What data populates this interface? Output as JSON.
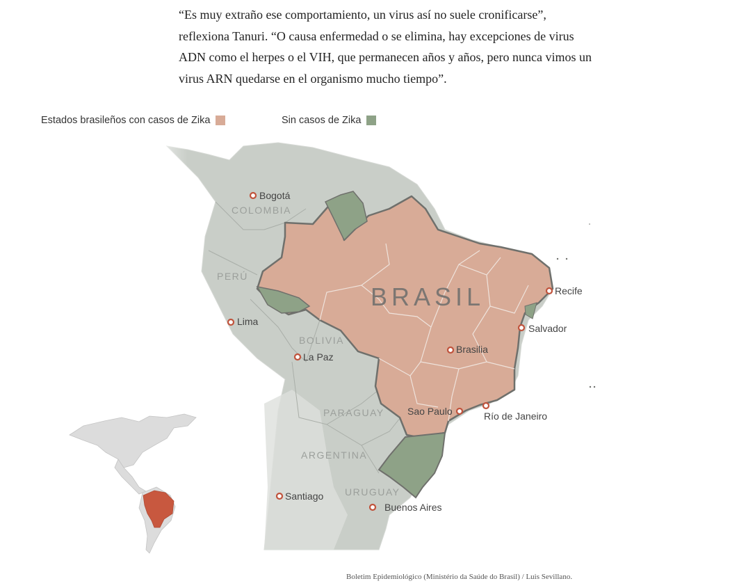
{
  "article": {
    "paragraph": "“Es muy extraño ese comportamiento, un virus así no suele cronificarse”, reflexiona Tanuri. “O causa enfermedad o se elimina, hay excepciones de virus ADN como el herpes o el VIH, que permanecen años y años, pero nunca vimos un virus ARN quedarse en el organismo mucho tiempo”."
  },
  "legend": {
    "zika_label": "Estados brasileños con casos de Zika",
    "no_zika_label": "Sin casos de Zika"
  },
  "colors": {
    "zika": "#d8ab97",
    "no_zika": "#8ea287",
    "land": "#c9cec8",
    "land_light": "#e2e5e1",
    "inset_land": "#dcdcdc",
    "inset_brazil": "#c8583f",
    "city_marker": "#c0533c",
    "border": "#6f706c"
  },
  "map": {
    "country_labels": {
      "colombia": "COLOMBIA",
      "peru": "PERÚ",
      "bolivia": "BOLIVIA",
      "paraguay": "PARAGUAY",
      "argentina": "ARGENTINA",
      "uruguay": "URUGUAY"
    },
    "brasil_label": "BRASIL",
    "cities": {
      "bogota": "Bogotá",
      "lima": "Lima",
      "la_paz": "La Paz",
      "brasilia": "Brasilia",
      "recife": "Recife",
      "salvador": "Salvador",
      "sao_paulo": "Sao Paulo",
      "rio": "Río de Janeiro",
      "santiago": "Santiago",
      "buenos_aires": "Buenos Aires"
    }
  },
  "credit": "Boletim Epidemiológico (Ministério da Saúde do Brasil) / Luis Sevillano."
}
